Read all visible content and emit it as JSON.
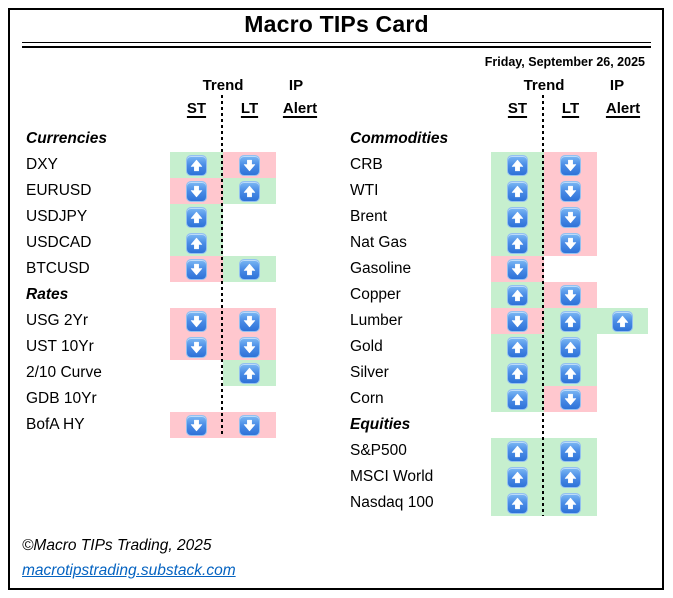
{
  "header": {
    "title": "Macro TIPs Card",
    "date": "Friday, September 26, 2025"
  },
  "column_headers": {
    "trend": "Trend",
    "ip": "IP",
    "st": "ST",
    "lt": "LT",
    "alert": "Alert"
  },
  "colors": {
    "uptrend_bg": "#c6efce",
    "downtrend_bg": "#ffc7ce",
    "arrow_button_blue": "#4a8ce6",
    "link_blue": "#0563c1"
  },
  "icons": {
    "up": "up-arrow-button-icon",
    "down": "down-arrow-button-icon"
  },
  "panels": [
    {
      "name": "left",
      "rows": [
        {
          "type": "section",
          "label": "Currencies"
        },
        {
          "type": "item",
          "label": "DXY",
          "st": "up",
          "lt": "down",
          "alert": null
        },
        {
          "type": "item",
          "label": "EURUSD",
          "st": "down",
          "lt": "up",
          "alert": null
        },
        {
          "type": "item",
          "label": "USDJPY",
          "st": "up",
          "lt": null,
          "alert": null
        },
        {
          "type": "item",
          "label": "USDCAD",
          "st": "up",
          "lt": null,
          "alert": null
        },
        {
          "type": "item",
          "label": "BTCUSD",
          "st": "down",
          "lt": "up",
          "alert": null
        },
        {
          "type": "section",
          "label": "Rates"
        },
        {
          "type": "item",
          "label": "USG 2Yr",
          "st": "down",
          "lt": "down",
          "alert": null
        },
        {
          "type": "item",
          "label": "UST 10Yr",
          "st": "down",
          "lt": "down",
          "alert": null
        },
        {
          "type": "item",
          "label": "2/10 Curve",
          "st": null,
          "lt": "up",
          "alert": null
        },
        {
          "type": "item",
          "label": "GDB 10Yr",
          "st": null,
          "lt": null,
          "alert": null
        },
        {
          "type": "item",
          "label": "BofA HY",
          "st": "down",
          "lt": "down",
          "alert": null
        }
      ]
    },
    {
      "name": "right",
      "rows": [
        {
          "type": "section",
          "label": "Commodities"
        },
        {
          "type": "item",
          "label": "CRB",
          "st": "up",
          "lt": "down",
          "alert": null
        },
        {
          "type": "item",
          "label": "WTI",
          "st": "up",
          "lt": "down",
          "alert": null
        },
        {
          "type": "item",
          "label": "Brent",
          "st": "up",
          "lt": "down",
          "alert": null
        },
        {
          "type": "item",
          "label": "Nat Gas",
          "st": "up",
          "lt": "down",
          "alert": null
        },
        {
          "type": "item",
          "label": "Gasoline",
          "st": "down",
          "lt": null,
          "alert": null
        },
        {
          "type": "item",
          "label": "Copper",
          "st": "up",
          "lt": "down",
          "alert": null
        },
        {
          "type": "item",
          "label": "Lumber",
          "st": "down",
          "lt": "up",
          "alert": "up"
        },
        {
          "type": "item",
          "label": "Gold",
          "st": "up",
          "lt": "up",
          "alert": null
        },
        {
          "type": "item",
          "label": "Silver",
          "st": "up",
          "lt": "up",
          "alert": null
        },
        {
          "type": "item",
          "label": "Corn",
          "st": "up",
          "lt": "down",
          "alert": null
        },
        {
          "type": "section",
          "label": "Equities"
        },
        {
          "type": "item",
          "label": "S&P500",
          "st": "up",
          "lt": "up",
          "alert": null
        },
        {
          "type": "item",
          "label": "MSCI World",
          "st": "up",
          "lt": "up",
          "alert": null
        },
        {
          "type": "item",
          "label": "Nasdaq 100",
          "st": "up",
          "lt": "up",
          "alert": null
        }
      ]
    }
  ],
  "footer": {
    "copyright": "©Macro TIPs Trading, 2025",
    "link": "macrotipstrading.substack.com"
  }
}
